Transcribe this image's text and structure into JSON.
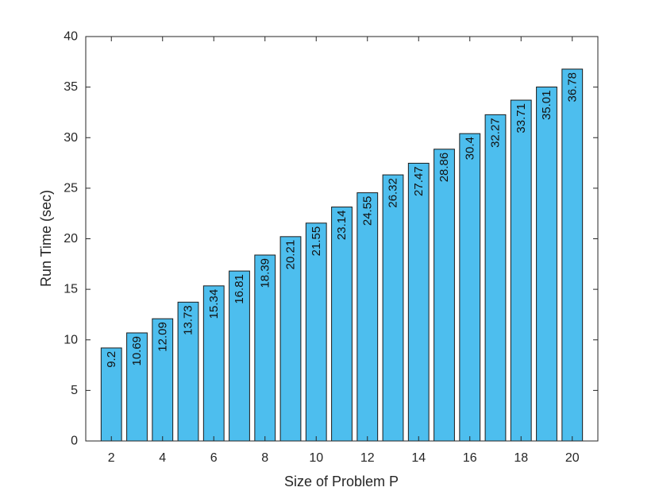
{
  "chart_data": {
    "type": "bar",
    "title": "",
    "xlabel": "Size of Problem P",
    "ylabel": "Run Time (sec)",
    "categories": [
      2,
      3,
      4,
      5,
      6,
      7,
      8,
      9,
      10,
      11,
      12,
      13,
      14,
      15,
      16,
      17,
      18,
      19,
      20
    ],
    "values": [
      9.2,
      10.69,
      12.09,
      13.73,
      15.34,
      16.81,
      18.39,
      20.21,
      21.55,
      23.14,
      24.55,
      26.32,
      27.47,
      28.86,
      30.4,
      32.27,
      33.71,
      35.01,
      36.78
    ],
    "value_labels": [
      "9.2",
      "10.69",
      "12.09",
      "13.73",
      "15.34",
      "16.81",
      "18.39",
      "20.21",
      "21.55",
      "23.14",
      "24.55",
      "26.32",
      "27.47",
      "28.86",
      "30.4",
      "32.27",
      "33.71",
      "35.01",
      "36.78"
    ],
    "x_ticks": [
      2,
      4,
      6,
      8,
      10,
      12,
      14,
      16,
      18,
      20
    ],
    "y_ticks": [
      0,
      5,
      10,
      15,
      20,
      25,
      30,
      35,
      40
    ],
    "xlim": [
      1,
      21
    ],
    "ylim": [
      0,
      40
    ],
    "bar_color": "#4DBEEE",
    "grid": false,
    "legend": "none"
  }
}
